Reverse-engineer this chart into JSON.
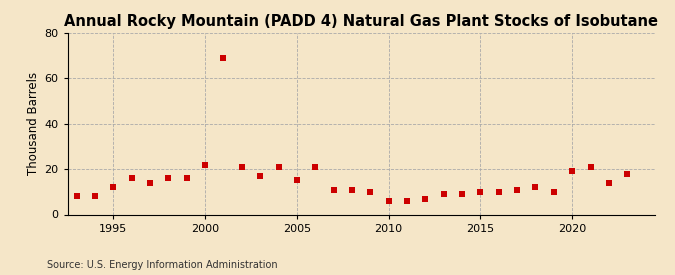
{
  "title": "Annual Rocky Mountain (PADD 4) Natural Gas Plant Stocks of Isobutane",
  "ylabel": "Thousand Barrels",
  "source": "Source: U.S. Energy Information Administration",
  "years": [
    1993,
    1994,
    1995,
    1996,
    1997,
    1998,
    1999,
    2000,
    2001,
    2002,
    2003,
    2004,
    2005,
    2006,
    2007,
    2008,
    2009,
    2010,
    2011,
    2012,
    2013,
    2014,
    2015,
    2016,
    2017,
    2018,
    2019,
    2020,
    2021,
    2022,
    2023
  ],
  "values": [
    8,
    8,
    12,
    16,
    14,
    16,
    16,
    22,
    69,
    21,
    17,
    21,
    15,
    21,
    11,
    11,
    10,
    6,
    6,
    7,
    9,
    9,
    10,
    10,
    11,
    12,
    10,
    19,
    21,
    14,
    18
  ],
  "marker_color": "#cc0000",
  "background_color": "#f5e6c8",
  "grid_color": "#aaaaaa",
  "xlim": [
    1992.5,
    2024.5
  ],
  "ylim": [
    0,
    80
  ],
  "yticks": [
    0,
    20,
    40,
    60,
    80
  ],
  "xticks": [
    1995,
    2000,
    2005,
    2010,
    2015,
    2020
  ],
  "title_fontsize": 10.5,
  "label_fontsize": 8.5,
  "tick_fontsize": 8,
  "source_fontsize": 7
}
